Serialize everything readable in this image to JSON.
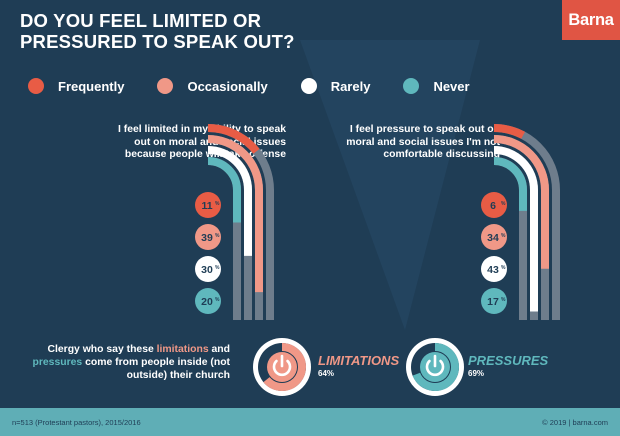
{
  "header": {
    "title_line1": "DO YOU FEEL LIMITED OR",
    "title_line2": "PRESSURED TO SPEAK OUT?",
    "logo": "Barna"
  },
  "colors": {
    "background": "#1f3d55",
    "frequently": "#e85c45",
    "occasionally": "#f09887",
    "rarely": "#ffffff",
    "never": "#5fb8bd",
    "track": "#6e7d8c",
    "accent": "#e05544"
  },
  "legend": [
    {
      "label": "Frequently",
      "color": "#e85c45"
    },
    {
      "label": "Occasionally",
      "color": "#f09887"
    },
    {
      "label": "Rarely",
      "color": "#ffffff"
    },
    {
      "label": "Never",
      "color": "#5fb8bd"
    }
  ],
  "chart_data": [
    {
      "type": "radial-bar",
      "question": "I feel limited in my ability to speak out on moral and social issues because people will take offense",
      "categories": [
        "Frequently",
        "Occasionally",
        "Rarely",
        "Never"
      ],
      "values": [
        11,
        39,
        30,
        20
      ],
      "unit": "%"
    },
    {
      "type": "radial-bar",
      "question": "I feel pressure to speak out on moral and social issues I'm not comfortable discussing",
      "categories": [
        "Frequently",
        "Occasionally",
        "Rarely",
        "Never"
      ],
      "values": [
        6,
        34,
        43,
        17
      ],
      "unit": "%"
    }
  ],
  "bottom": {
    "clergy_part1": "Clergy who say these ",
    "clergy_limitations": "limitations",
    "clergy_part2": " and ",
    "clergy_pressures": "pressures",
    "clergy_part3": " come from people inside (not outside) their church",
    "limitations_label": "LIMITATIONS",
    "limitations_value": 64,
    "limitations_pct": "64%",
    "pressures_label": "PRESSURES",
    "pressures_value": 69,
    "pressures_pct": "69%"
  },
  "footer": {
    "source": "n=513 (Protestant pastors), 2015/2016",
    "copyright": "© 2019 | barna.com"
  }
}
